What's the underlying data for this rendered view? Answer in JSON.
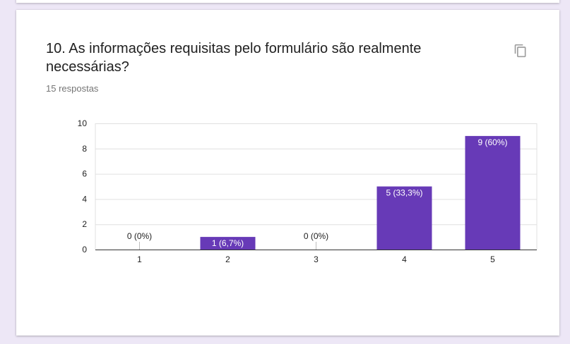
{
  "question": {
    "title": "10. As informações requisitas pelo formulário são realmente necessárias?",
    "responses_label": "15 respostas"
  },
  "icons": {
    "copy": "copy-icon"
  },
  "colors": {
    "bar": "#673ab7",
    "text": "#212121",
    "muted": "#757575",
    "grid": "#e0e0e0",
    "background": "#ede7f6"
  },
  "chart_data": {
    "type": "bar",
    "categories": [
      "1",
      "2",
      "3",
      "4",
      "5"
    ],
    "values": [
      0,
      1,
      0,
      5,
      9
    ],
    "data_labels": [
      "0 (0%)",
      "1 (6,7%)",
      "0 (0%)",
      "5 (33,3%)",
      "9 (60%)"
    ],
    "y_ticks": [
      0,
      2,
      4,
      6,
      8,
      10
    ],
    "ylim": [
      0,
      10
    ],
    "grid": true,
    "legend": "none"
  }
}
